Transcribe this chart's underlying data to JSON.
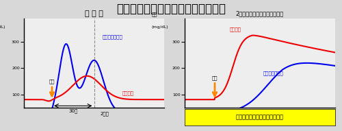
{
  "title": "インスリン分泌パターンと血糖推移",
  "title_fontsize": 12,
  "bg_color": "#d8d8d8",
  "panel_bg": "#eeeeee",
  "left_title": "正 常 人",
  "right_title": "2型糖尿病（インスリン不要）",
  "ylabel_line1": "血糖",
  "ylabel_line2": "(mg/dL)",
  "yticks": [
    100,
    200,
    300
  ],
  "meal_label": "食餅",
  "left_insulin_label": "インスリン分泌",
  "left_blood_label": "血糖曲線",
  "right_insulin_label": "インスリン分泌",
  "right_blood_label": "血糖曲線",
  "note_label": "インスリン抗抗性の改善が第一",
  "label_30min": "30分",
  "label_2h": "2時間",
  "blue_color": "#0000ee",
  "red_color": "#ee0000",
  "orange_color": "#ff8800",
  "yellow_bg": "#ffff00"
}
